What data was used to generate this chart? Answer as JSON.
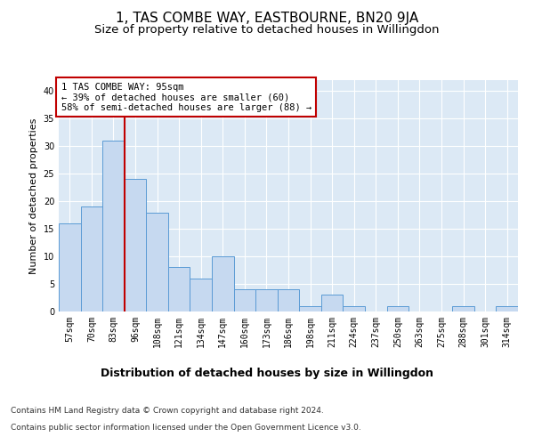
{
  "title": "1, TAS COMBE WAY, EASTBOURNE, BN20 9JA",
  "subtitle": "Size of property relative to detached houses in Willingdon",
  "xlabel": "Distribution of detached houses by size in Willingdon",
  "ylabel": "Number of detached properties",
  "categories": [
    "57sqm",
    "70sqm",
    "83sqm",
    "96sqm",
    "108sqm",
    "121sqm",
    "134sqm",
    "147sqm",
    "160sqm",
    "173sqm",
    "186sqm",
    "198sqm",
    "211sqm",
    "224sqm",
    "237sqm",
    "250sqm",
    "263sqm",
    "275sqm",
    "288sqm",
    "301sqm",
    "314sqm"
  ],
  "values": [
    16,
    19,
    31,
    24,
    18,
    8,
    6,
    10,
    4,
    4,
    4,
    1,
    3,
    1,
    0,
    1,
    0,
    0,
    1,
    0,
    1
  ],
  "bar_color": "#c6d9f0",
  "bar_edge_color": "#5b9bd5",
  "vline_color": "#c00000",
  "vline_x": 2.5,
  "annotation_text": "1 TAS COMBE WAY: 95sqm\n← 39% of detached houses are smaller (60)\n58% of semi-detached houses are larger (88) →",
  "annotation_box_color": "#c00000",
  "ylim": [
    0,
    42
  ],
  "yticks": [
    0,
    5,
    10,
    15,
    20,
    25,
    30,
    35,
    40
  ],
  "background_color": "#dce9f5",
  "footer_line1": "Contains HM Land Registry data © Crown copyright and database right 2024.",
  "footer_line2": "Contains public sector information licensed under the Open Government Licence v3.0.",
  "title_fontsize": 11,
  "subtitle_fontsize": 9.5,
  "xlabel_fontsize": 9,
  "ylabel_fontsize": 8,
  "tick_fontsize": 7,
  "footer_fontsize": 6.5,
  "annotation_fontsize": 7.5
}
